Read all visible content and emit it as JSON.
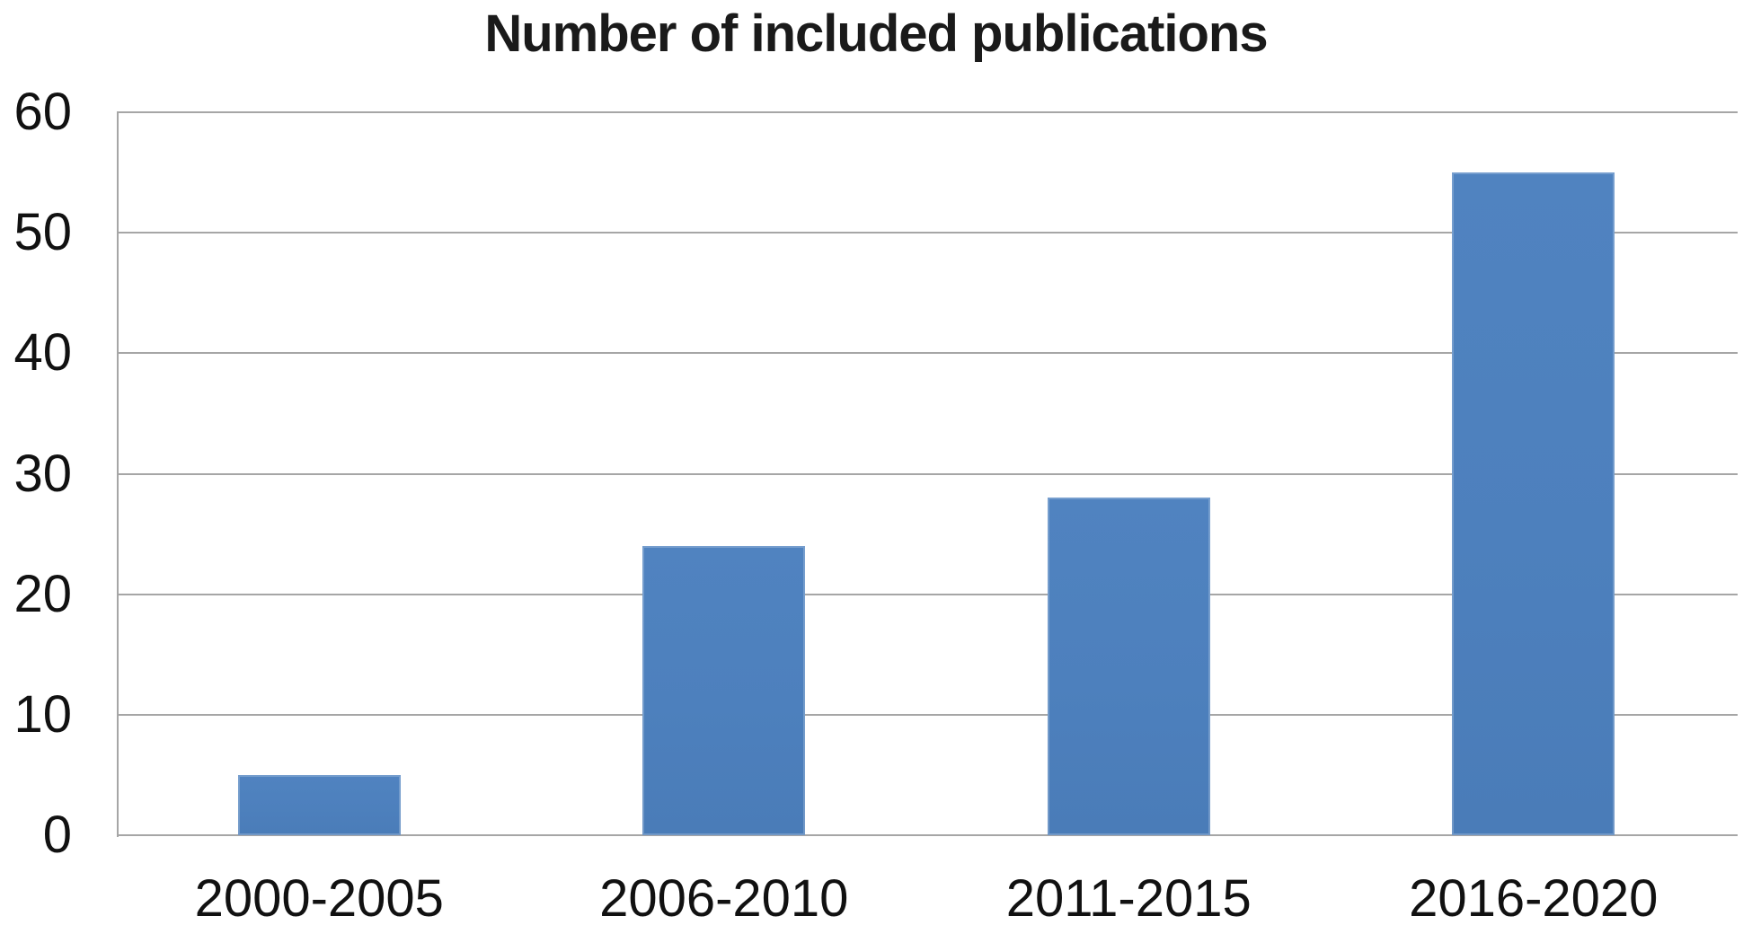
{
  "chart_data": {
    "type": "bar",
    "title": "Number of included publications",
    "categories": [
      "2000-2005",
      "2006-2010",
      "2011-2015",
      "2016-2020"
    ],
    "values": [
      5,
      24,
      28,
      55
    ],
    "xlabel": "",
    "ylabel": "",
    "ylim": [
      0,
      60
    ],
    "yticks": [
      0,
      10,
      20,
      30,
      40,
      50,
      60
    ],
    "grid": true,
    "legend": "none",
    "bar_color": "#4d80bd",
    "gridline_color": "#a6a6a6",
    "axis_color": "#a6a6a6",
    "text_color": "#111111",
    "background": "#ffffff"
  }
}
